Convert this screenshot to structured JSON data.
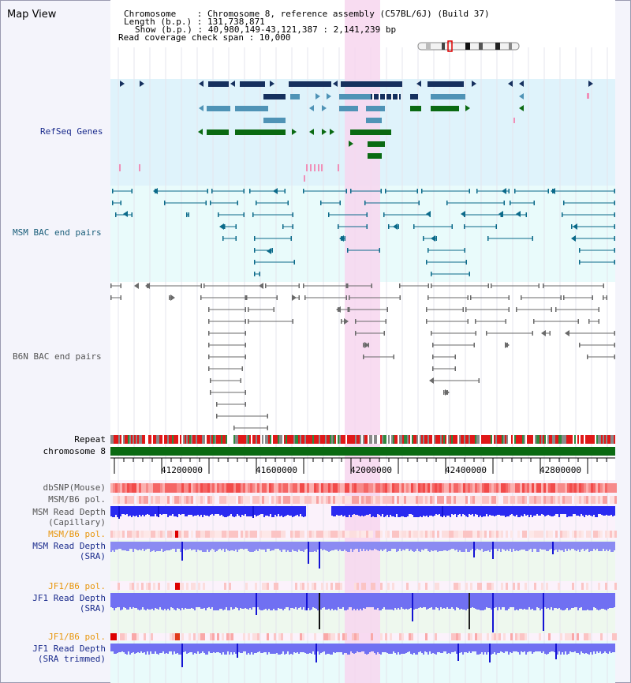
{
  "map_title": "Map View",
  "header": {
    "chromosome": "Chromosome    : Chromosome 8, reference assembly (C57BL/6J) (Build 37)",
    "length": "Length (b.p.) : 131,738,871",
    "show": "Show (b.p.) : 40,980,149-43,121,387 : 2,141,239 bp",
    "coverage": "Read coverage check span : 10,000"
  },
  "tracks": {
    "refseq": "RefSeq Genes",
    "msm_bac": "MSM BAC end pairs",
    "b6n_bac": "B6N BAC end pairs",
    "repeat": "Repeat",
    "chromosome": "chromosome 8",
    "dbsnp": "dbSNP(Mouse)",
    "msm_b6_pol_1": "MSM/B6 pol.",
    "msm_depth_cap_1": "MSM Read Depth",
    "msm_depth_cap_2": "(Capillary)",
    "msm_b6_pol_2": "MSM/B6 pol.",
    "msm_depth_sra_1": "MSM Read Depth",
    "msm_depth_sra_2": "(SRA)",
    "jf1_pol_1": "JF1/B6 pol.",
    "jf1_depth_sra_1": "JF1 Read Depth",
    "jf1_depth_sra_2": "(SRA)",
    "jf1_pol_2": "JF1/B6 pol.",
    "jf1_depth_trim_1": "JF1 Read Depth",
    "jf1_depth_trim_2": "(SRA trimmed)"
  },
  "axis": {
    "ticks": [
      "41200000",
      "41600000",
      "42000000",
      "42400000",
      "42800000"
    ]
  },
  "colors": {
    "refseq_bg": "#dff3fb",
    "msm_bac_bg": "#e9fbfb",
    "highlight": "#f7d6ef",
    "gene_navy": "#16305e",
    "gene_blue": "#4f93b6",
    "gene_green": "#0a6a12",
    "msm_pair": "#0b6a8a",
    "b6n_pair": "#6a6a6a",
    "chromosome_bar": "#0a6a12",
    "label_blue": "#1a2b8c",
    "label_orange": "#e8960c",
    "label_teal": "#1a5e7a"
  }
}
